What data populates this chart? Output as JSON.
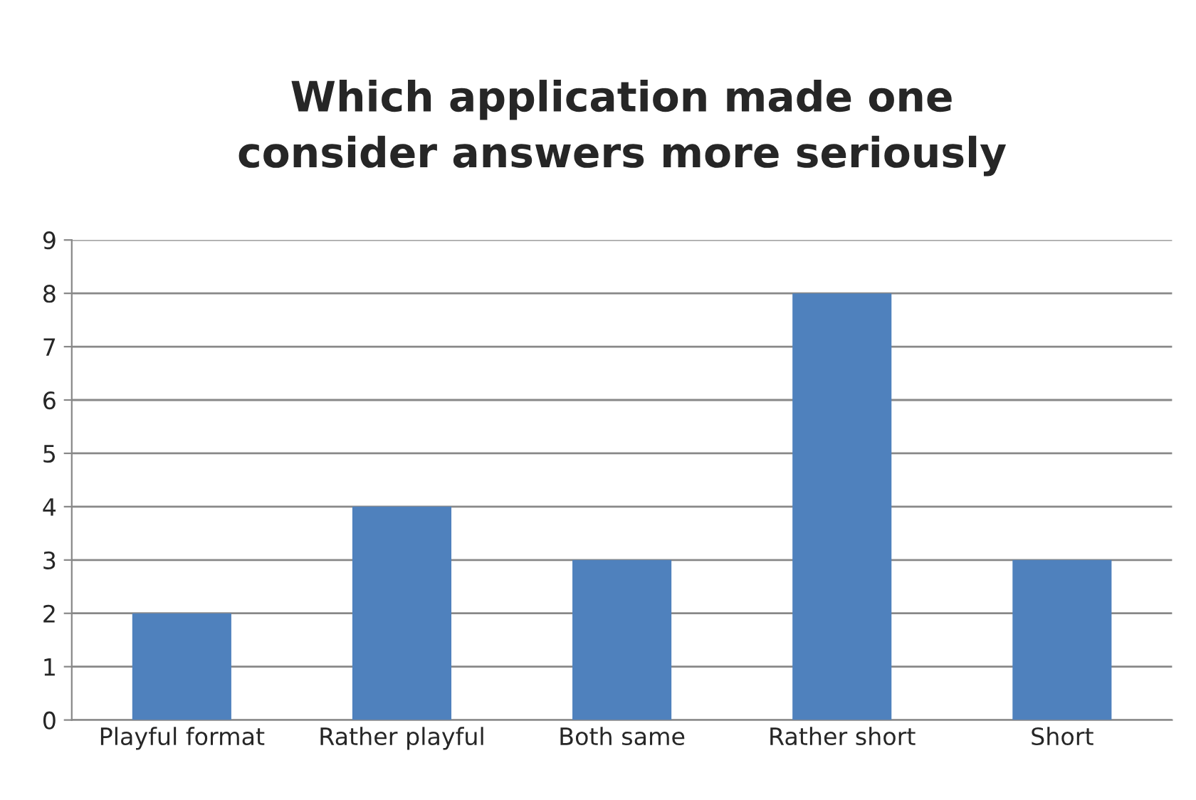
{
  "chart_data": {
    "type": "bar",
    "title": "Which application made one\nconsider answers more seriously",
    "categories": [
      "Playful format",
      "Rather playful",
      "Both same",
      "Rather short",
      "Short"
    ],
    "values": [
      2,
      4,
      3,
      8,
      3
    ],
    "color": "#4f81bd",
    "ylim": [
      0,
      9
    ],
    "yticks": [
      0,
      1,
      2,
      3,
      4,
      5,
      6,
      7,
      8,
      9
    ],
    "grid": "y"
  }
}
